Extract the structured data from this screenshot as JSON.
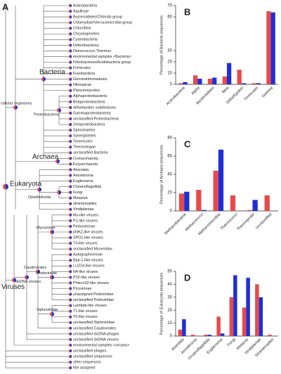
{
  "panel_labels": [
    "A",
    "B",
    "C",
    "D"
  ],
  "tree": {
    "clades": [
      "cellular organisms",
      "Bacteria",
      "Proteobacteria",
      "Archaea",
      "Eukaryota",
      "Opisthokonta",
      "Viruses",
      "dsDNA viruses",
      "Caudovirales",
      "Myoviridae",
      "Podoviridae",
      "Siphoviridae"
    ],
    "leaves": [
      "Actinobacteria",
      "Aquificae",
      "Bacteroidetes/Chlorobi group",
      "Chlamydiae/Verrucomicrobia group",
      "Chloroflexi",
      "Chrysiogenetes",
      "Cyanobacteria",
      "Deferribacteres",
      "Deinococcus-Thermus",
      "environmental samples <Bacteria>",
      "Fibrobacteres/Acidobacteria group",
      "Firmicutes",
      "Fusobacteria",
      "Gemmatimonadetes",
      "Nitrospirae",
      "Planctomycetes",
      "Alphaproteobacteria",
      "Betaproteobacteria",
      "delta/epsilon subdivisions",
      "Gammaproteobacteria",
      "unclassified Proteobacteria",
      "Zetaproteobacteria",
      "Spirochaetes",
      "Synergistetes",
      "Tenericutes",
      "Thermotogae",
      "unclassified Bacteria",
      "Crenarchaeota",
      "Euryarchaeota",
      "Alveolata",
      "Amoebozoa",
      "Euglenozoa",
      "Choanoflagellida",
      "Fungi",
      "Metazoa",
      "stramenopiles",
      "Viridiplantae",
      "Mu-like viruses",
      "P1-like viruses",
      "Peduovirinae",
      "phiKZ-like viruses",
      "SPO1-like viruses",
      "T4-like viruses",
      "unclassified Myoviridae",
      "Autographivirinae",
      "Bpp-1-like viruses",
      "LUZ24-like viruses",
      "N4-like viruses",
      "P22-like viruses",
      "Phieco32-like viruses",
      "Picovirinae",
      "unassigned Podoviridae",
      "unclassified Podoviridae",
      "Lambda-like viruses",
      "T1-like viruses",
      "T5-like viruses",
      "unclassified Siphoviridae",
      "unclassified Caudovirales",
      "unclassified dsDNA phages",
      "unclassified dsDNA viruses",
      "environmental samples <viruses>",
      "unclassified phages",
      "unclassified sequences",
      "other sequences",
      "Not assigned"
    ]
  },
  "chart_data": [
    {
      "type": "bar",
      "y_label": "Percentage of Bacteria sequences",
      "categories": [
        "Actinobacteria",
        "Alpha",
        "Bacteroidetes",
        "Beta",
        "Delta/Epsilon",
        "Firmicutes",
        "Gamma"
      ],
      "series": [
        {
          "color": "#e8494a",
          "values": [
            1,
            8,
            5,
            7,
            13,
            1,
            65
          ]
        },
        {
          "color": "#1f2fd6",
          "values": [
            2,
            5,
            6,
            19,
            1,
            1,
            64
          ]
        }
      ],
      "ylim": [
        0,
        70
      ],
      "yticks": [
        0,
        10,
        20,
        30,
        60,
        70
      ]
    },
    {
      "type": "bar",
      "y_label": "Percentage of Archaea sequences",
      "categories": [
        "Methanobacteria",
        "Methanococci",
        "Methanomicrobia",
        "Thermococci",
        "Thermoprotei",
        "Unclassified"
      ],
      "series": [
        {
          "color": "#e8494a",
          "values": [
            19,
            23,
            44,
            17,
            1,
            17
          ]
        },
        {
          "color": "#1f2fd6",
          "values": [
            21,
            1,
            67,
            0,
            12,
            0
          ]
        }
      ],
      "ylim": [
        0,
        80
      ],
      "yticks": [
        0,
        20,
        40,
        60,
        80
      ]
    },
    {
      "type": "bar",
      "y_label": "Percentage of Eukaryota sequences",
      "categories": [
        "Alveolata",
        "Amoebozoa",
        "Choanoflagellida",
        "Euglenozoa",
        "Fungi",
        "Metazoa",
        "Viridiplantae",
        "Stramenopiles"
      ],
      "series": [
        {
          "color": "#e8494a",
          "values": [
            5,
            1,
            1,
            15,
            30,
            22,
            40,
            1
          ]
        },
        {
          "color": "#1f2fd6",
          "values": [
            13,
            0,
            1,
            2,
            47,
            45,
            30,
            0
          ]
        }
      ],
      "ylim": [
        0,
        50
      ],
      "yticks": [
        0,
        10,
        20,
        30,
        40,
        50
      ]
    }
  ]
}
